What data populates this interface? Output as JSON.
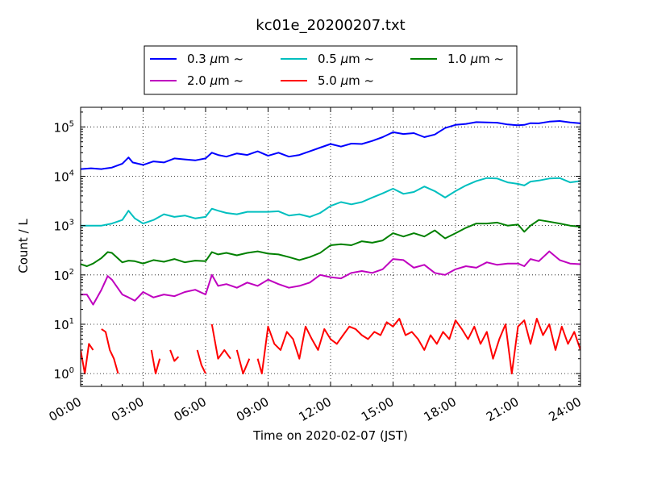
{
  "chart_data": {
    "type": "line",
    "title": "kc01e_20200207.txt",
    "xlabel": "Time on 2020-02-07 (JST)",
    "ylabel": "Count / L",
    "x_ticks": [
      "00:00",
      "03:00",
      "06:00",
      "09:00",
      "12:00",
      "15:00",
      "18:00",
      "21:00",
      "24:00"
    ],
    "y_scale": "log",
    "y_ticks": [
      {
        "base": "10",
        "exp": "0"
      },
      {
        "base": "10",
        "exp": "1"
      },
      {
        "base": "10",
        "exp": "2"
      },
      {
        "base": "10",
        "exp": "3"
      },
      {
        "base": "10",
        "exp": "4"
      },
      {
        "base": "10",
        "exp": "5"
      }
    ],
    "ylim": [
      0.55,
      250000
    ],
    "xlim_hours": [
      0,
      24
    ],
    "grid": true,
    "legend_position": "top",
    "legend_columns": 3,
    "legend_unit": "μm",
    "legend_suffix": "~",
    "series": [
      {
        "name": "0.3",
        "color": "#0000ff",
        "x": [
          0,
          0.5,
          1,
          1.5,
          2,
          2.3,
          2.5,
          3,
          3.5,
          4,
          4.5,
          5,
          5.5,
          6,
          6.3,
          6.6,
          7,
          7.5,
          8,
          8.5,
          9,
          9.5,
          10,
          10.5,
          11,
          11.5,
          12,
          12.5,
          13,
          13.5,
          14,
          14.5,
          15,
          15.5,
          16,
          16.5,
          17,
          17.5,
          18,
          18.5,
          19,
          19.5,
          20,
          20.5,
          21,
          21.3,
          21.6,
          22,
          22.5,
          23,
          23.5,
          24
        ],
        "y": [
          14000,
          14500,
          14000,
          15000,
          18000,
          24000,
          19000,
          17000,
          20000,
          19000,
          23000,
          22000,
          21000,
          23000,
          30000,
          27000,
          25000,
          29000,
          27000,
          32000,
          26000,
          30000,
          25000,
          27000,
          32000,
          38000,
          45000,
          40000,
          46000,
          45000,
          52000,
          62000,
          78000,
          72000,
          75000,
          62000,
          70000,
          95000,
          110000,
          115000,
          125000,
          123000,
          122000,
          112000,
          108000,
          110000,
          119000,
          118000,
          128000,
          132000,
          123000,
          118000
        ]
      },
      {
        "name": "0.5",
        "color": "#00bfbf",
        "x": [
          0,
          0.5,
          1,
          1.5,
          2,
          2.3,
          2.6,
          3,
          3.5,
          4,
          4.5,
          5,
          5.5,
          6,
          6.3,
          6.6,
          7,
          7.5,
          8,
          8.5,
          9,
          9.5,
          10,
          10.5,
          11,
          11.5,
          12,
          12.5,
          13,
          13.5,
          14,
          14.5,
          15,
          15.5,
          16,
          16.5,
          17,
          17.5,
          18,
          18.5,
          19,
          19.5,
          20,
          20.5,
          21,
          21.3,
          21.6,
          22,
          22.5,
          23,
          23.5,
          24
        ],
        "y": [
          1000,
          1000,
          1000,
          1100,
          1300,
          2000,
          1400,
          1100,
          1300,
          1700,
          1500,
          1600,
          1400,
          1500,
          2200,
          2000,
          1800,
          1700,
          1900,
          1900,
          1900,
          1950,
          1600,
          1700,
          1500,
          1800,
          2500,
          3000,
          2700,
          3000,
          3700,
          4500,
          5600,
          4400,
          4800,
          6200,
          5000,
          3700,
          5000,
          6500,
          8000,
          9200,
          9000,
          7500,
          7000,
          6500,
          7800,
          8200,
          9000,
          9200,
          7500,
          8000
        ]
      },
      {
        "name": "1.0",
        "color": "#008000",
        "x": [
          0,
          0.3,
          0.6,
          1,
          1.3,
          1.5,
          2,
          2.3,
          2.6,
          3,
          3.5,
          4,
          4.5,
          5,
          5.5,
          6,
          6.3,
          6.6,
          7,
          7.5,
          8,
          8.5,
          9,
          9.5,
          10,
          10.5,
          11,
          11.5,
          12,
          12.5,
          13,
          13.5,
          14,
          14.5,
          15,
          15.5,
          16,
          16.5,
          17,
          17.5,
          18,
          18.5,
          19,
          19.5,
          20,
          20.5,
          21,
          21.3,
          21.6,
          22,
          22.5,
          23,
          23.5,
          24
        ],
        "y": [
          165,
          150,
          170,
          220,
          290,
          280,
          180,
          195,
          190,
          170,
          200,
          185,
          210,
          180,
          195,
          190,
          290,
          260,
          280,
          250,
          280,
          300,
          270,
          260,
          230,
          200,
          230,
          280,
          400,
          420,
          400,
          480,
          450,
          500,
          700,
          600,
          700,
          600,
          800,
          550,
          700,
          900,
          1100,
          1100,
          1150,
          1000,
          1050,
          750,
          1000,
          1300,
          1200,
          1100,
          1000,
          950
        ]
      },
      {
        "name": "2.0",
        "color": "#bf00bf",
        "x": [
          0,
          0.3,
          0.6,
          1,
          1.3,
          1.5,
          2,
          2.3,
          2.6,
          3,
          3.5,
          4,
          4.5,
          5,
          5.5,
          6,
          6.3,
          6.6,
          7,
          7.5,
          8,
          8.5,
          9,
          9.5,
          10,
          10.5,
          11,
          11.5,
          12,
          12.5,
          13,
          13.5,
          14,
          14.5,
          15,
          15.5,
          16,
          16.5,
          17,
          17.5,
          18,
          18.5,
          19,
          19.5,
          20,
          20.5,
          21,
          21.3,
          21.6,
          22,
          22.5,
          23,
          23.5,
          24
        ],
        "y": [
          40,
          40,
          25,
          50,
          95,
          80,
          40,
          35,
          30,
          45,
          35,
          40,
          37,
          45,
          50,
          40,
          100,
          60,
          65,
          55,
          70,
          60,
          80,
          65,
          55,
          60,
          70,
          100,
          90,
          85,
          110,
          120,
          110,
          130,
          210,
          200,
          140,
          160,
          110,
          100,
          130,
          150,
          140,
          180,
          160,
          170,
          170,
          150,
          210,
          190,
          300,
          200,
          170,
          165
        ]
      },
      {
        "name": "5.0",
        "color": "#ff0000",
        "segments": [
          {
            "x": [
              0,
              0.2,
              0.4,
              0.6
            ],
            "y": [
              3,
              1,
              4,
              3
            ]
          },
          {
            "x": [
              1.0,
              1.2,
              1.4,
              1.6,
              1.8
            ],
            "y": [
              8,
              7,
              3,
              2,
              1
            ]
          },
          {
            "x": [
              3.4,
              3.6,
              3.8
            ],
            "y": [
              3,
              1,
              2
            ]
          },
          {
            "x": [
              4.3,
              4.5,
              4.7
            ],
            "y": [
              3,
              1.8,
              2.2
            ]
          },
          {
            "x": [
              5.6,
              5.8,
              6.0
            ],
            "y": [
              3,
              1.5,
              1
            ]
          },
          {
            "x": [
              6.3,
              6.6,
              6.9,
              7.2
            ],
            "y": [
              10,
              2,
              3,
              2
            ]
          },
          {
            "x": [
              7.5,
              7.8,
              8.1
            ],
            "y": [
              3,
              1,
              2
            ]
          },
          {
            "x": [
              8.5,
              8.7,
              9.0,
              9.3,
              9.6,
              9.9,
              10.2,
              10.5,
              10.8,
              11.1,
              11.4,
              11.7,
              12.0,
              12.3,
              12.6,
              12.9,
              13.2,
              13.5,
              13.8,
              14.1,
              14.4,
              14.7,
              15.0,
              15.3,
              15.6,
              15.9,
              16.2,
              16.5,
              16.8,
              17.1,
              17.4,
              17.7,
              18.0,
              18.3,
              18.6,
              18.9,
              19.2,
              19.5,
              19.8,
              20.1,
              20.4,
              20.7,
              21.0,
              21.3,
              21.6,
              21.9,
              22.2,
              22.5,
              22.8,
              23.1,
              23.4,
              23.7,
              24.0
            ],
            "y": [
              2,
              1,
              9,
              4,
              3,
              7,
              5,
              2,
              9,
              5,
              3,
              8,
              5,
              4,
              6,
              9,
              8,
              6,
              5,
              7,
              6,
              11,
              9,
              13,
              6,
              7,
              5,
              3,
              6,
              4,
              7,
              5,
              12,
              8,
              5,
              9,
              4,
              7,
              2,
              5,
              10,
              1,
              9,
              12,
              4,
              13,
              6,
              10,
              3,
              9,
              4,
              7,
              3
            ]
          }
        ]
      }
    ]
  }
}
